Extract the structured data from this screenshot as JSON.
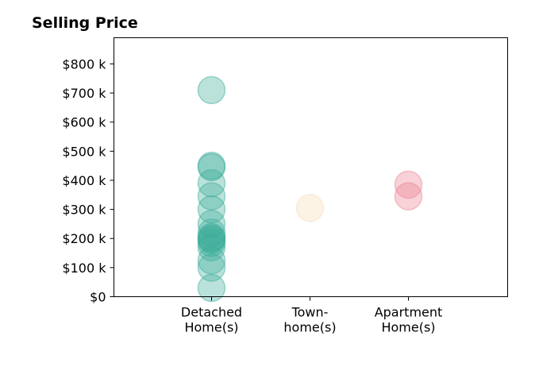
{
  "chart_data": {
    "type": "scatter",
    "title": "Selling Price",
    "xlabel": "",
    "ylabel": "",
    "categories": [
      [
        "Detached",
        "Home(s)"
      ],
      [
        "Town-",
        "home(s)"
      ],
      [
        "Apartment",
        "Home(s)"
      ]
    ],
    "yticks": [
      0,
      100,
      200,
      300,
      400,
      500,
      600,
      700,
      800
    ],
    "ytick_labels": [
      "$0",
      "$100 k",
      "$200 k",
      "$300 k",
      "$400 k",
      "$500 k",
      "$600 k",
      "$700 k",
      "$800 k"
    ],
    "ylim": [
      0,
      890
    ],
    "y_unit": "thousand dollars",
    "grid": false,
    "series": [
      {
        "category": "Detached Home(s)",
        "color": "#3aab99",
        "values": [
          710,
          450,
          445,
          390,
          345,
          300,
          250,
          220,
          205,
          200,
          195,
          185,
          170,
          125,
          100,
          30
        ]
      },
      {
        "category": "Town-home(s)",
        "color": "#f5deb3",
        "values": [
          305
        ]
      },
      {
        "category": "Apartment Home(s)",
        "color": "#ec7f8f",
        "values": [
          385,
          345
        ]
      }
    ]
  }
}
